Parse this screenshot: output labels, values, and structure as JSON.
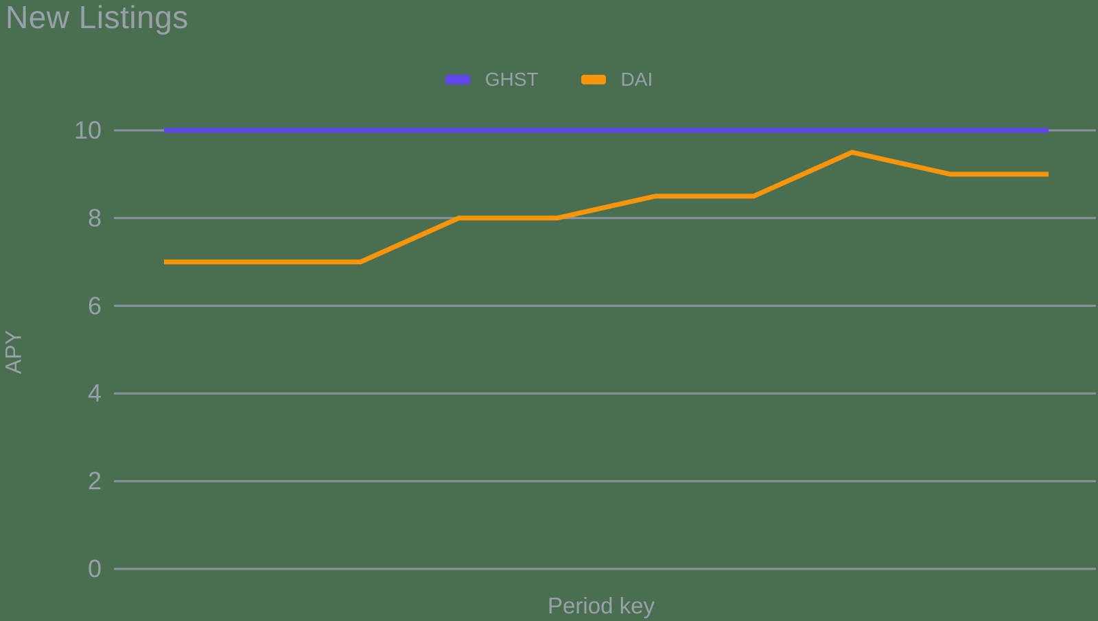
{
  "page": {
    "background": "#4a6f50",
    "text_color": "#99a0ab",
    "grid_color": "#8b93a2"
  },
  "chart_data": {
    "type": "line",
    "title": "New Listings",
    "xlabel": "Period key",
    "ylabel": "APY",
    "ylim": [
      0,
      10
    ],
    "yticks": [
      0,
      2,
      4,
      6,
      8,
      10
    ],
    "grid": true,
    "legend_position": "top-center",
    "x_tick_labels_visible": false,
    "series": [
      {
        "name": "GHST",
        "color": "#6246ef",
        "values": [
          10,
          10,
          10,
          10,
          10,
          10,
          10,
          10,
          10,
          10
        ]
      },
      {
        "name": "DAI",
        "color": "#f8950b",
        "values": [
          7,
          7,
          7,
          8,
          8,
          8.5,
          8.5,
          9.5,
          9,
          9
        ]
      }
    ]
  }
}
